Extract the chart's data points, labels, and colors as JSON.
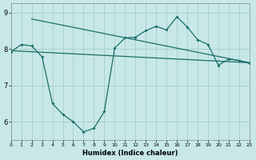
{
  "xlabel": "Humidex (Indice chaleur)",
  "bg_color": "#c8e8e8",
  "grid_color": "#aad0ce",
  "line_color": "#1a6e68",
  "xlim": [
    0,
    23
  ],
  "ylim": [
    5.5,
    9.25
  ],
  "yticks": [
    6,
    7,
    8,
    9
  ],
  "xticks": [
    0,
    1,
    2,
    3,
    4,
    5,
    6,
    7,
    8,
    9,
    10,
    11,
    12,
    13,
    14,
    15,
    16,
    17,
    18,
    19,
    20,
    21,
    22,
    23
  ],
  "line1_x": [
    2,
    23
  ],
  "line1_y": [
    8.82,
    7.62
  ],
  "line2_x": [
    0,
    23
  ],
  "line2_y": [
    7.95,
    7.62
  ],
  "line3_x": [
    0,
    1,
    2,
    3,
    4,
    5,
    6,
    7,
    8,
    9,
    10,
    11,
    12,
    13,
    14,
    15,
    16,
    17,
    18,
    19,
    20,
    21,
    22,
    23
  ],
  "line3_y": [
    7.92,
    8.12,
    8.08,
    7.78,
    6.5,
    6.2,
    6.0,
    5.72,
    5.82,
    6.28,
    8.02,
    8.3,
    8.32,
    8.5,
    8.62,
    8.52,
    8.88,
    8.6,
    8.25,
    8.12,
    7.55,
    7.72,
    7.68,
    7.6
  ]
}
